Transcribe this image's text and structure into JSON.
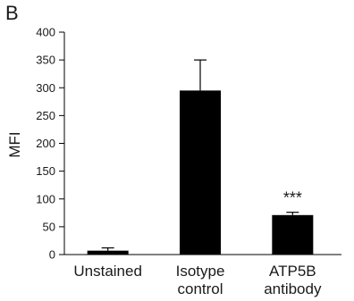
{
  "panel_letter": "B",
  "chart_data": {
    "type": "bar",
    "categories": [
      [
        "Unstained"
      ],
      [
        "Isotype",
        "control"
      ],
      [
        "ATP5B",
        "antibody"
      ]
    ],
    "values": [
      7,
      295,
      71
    ],
    "error_plus": [
      5,
      55,
      5
    ],
    "annotations": [
      "",
      "",
      "***"
    ],
    "title": "",
    "xlabel": "",
    "ylabel": "MFI",
    "ylim": [
      0,
      400
    ],
    "yticks": [
      0,
      50,
      100,
      150,
      200,
      250,
      300,
      350,
      400
    ],
    "grid": false,
    "bar_color": "#000000"
  }
}
